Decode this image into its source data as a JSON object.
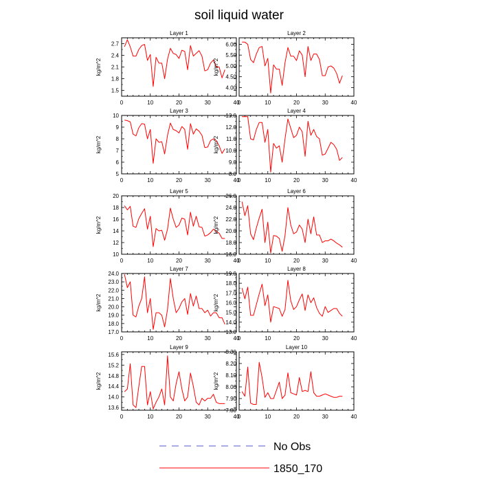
{
  "figure": {
    "title": "soil liquid water",
    "legend": [
      {
        "label": "No Obs",
        "color": "#5555cc",
        "style": "dashed"
      },
      {
        "label": "1850_170",
        "color": "#ff0000",
        "style": "solid"
      }
    ]
  },
  "chart_data": [
    {
      "type": "line",
      "title": "Layer 1",
      "ylabel": "kg/m^2",
      "xlim": [
        0,
        40
      ],
      "ylim": [
        1.35,
        2.85
      ],
      "xticks": [
        0,
        10,
        20,
        30,
        40
      ],
      "yticks": [
        1.5,
        1.8,
        2.1,
        2.4,
        2.7
      ],
      "ytick_labels": [
        "1.5",
        "1.8",
        "2.1",
        "2.4",
        "2.7"
      ],
      "series": [
        {
          "name": "1850_170",
          "color": "#ff0000",
          "x": [
            1,
            2,
            3,
            4,
            5,
            6,
            7,
            8,
            9,
            10,
            11,
            12,
            13,
            14,
            15,
            16,
            17,
            18,
            19,
            20,
            21,
            22,
            23,
            24,
            25,
            26,
            27,
            28,
            29,
            30,
            31,
            32,
            33,
            34,
            35,
            36
          ],
          "y": [
            2.62,
            2.8,
            2.62,
            2.38,
            2.38,
            2.55,
            2.65,
            2.68,
            2.27,
            2.42,
            1.6,
            2.35,
            2.2,
            2.2,
            1.8,
            2.3,
            2.58,
            2.45,
            2.42,
            2.32,
            2.53,
            2.5,
            2.03,
            2.65,
            2.38,
            2.45,
            2.52,
            2.38,
            2.0,
            2.03,
            2.2,
            2.28,
            2.1,
            2.1,
            1.82,
            2.03
          ]
        }
      ]
    },
    {
      "type": "line",
      "title": "Layer 2",
      "ylabel": "kg/m^2",
      "xlim": [
        0,
        40
      ],
      "ylim": [
        3.6,
        6.3
      ],
      "xticks": [
        0,
        10,
        20,
        30,
        40
      ],
      "yticks": [
        4.0,
        4.5,
        5.0,
        5.5,
        6.0
      ],
      "ytick_labels": [
        "4.00",
        "4.50",
        "5.00",
        "5.50",
        "6.00"
      ],
      "series": [
        {
          "name": "1850_170",
          "color": "#ff0000",
          "x": [
            1,
            2,
            3,
            4,
            5,
            6,
            7,
            8,
            9,
            10,
            11,
            12,
            13,
            14,
            15,
            16,
            17,
            18,
            19,
            20,
            21,
            22,
            23,
            24,
            25,
            26,
            27,
            28,
            29,
            30,
            31,
            32,
            33,
            34,
            35,
            36
          ],
          "y": [
            6.1,
            6.1,
            6.0,
            5.3,
            5.15,
            5.55,
            5.85,
            5.9,
            5.0,
            5.35,
            3.75,
            5.05,
            4.85,
            4.85,
            4.1,
            5.15,
            5.85,
            5.45,
            5.45,
            5.25,
            5.7,
            5.5,
            4.5,
            5.9,
            5.25,
            5.55,
            5.55,
            5.3,
            4.55,
            4.55,
            4.95,
            5.0,
            4.9,
            4.65,
            4.2,
            4.55
          ]
        }
      ]
    },
    {
      "type": "line",
      "title": "Layer 3",
      "ylabel": "kg/m^2",
      "xlim": [
        0,
        40
      ],
      "ylim": [
        5,
        10
      ],
      "xticks": [
        0,
        10,
        20,
        30,
        40
      ],
      "yticks": [
        5,
        6,
        7,
        8,
        9,
        10
      ],
      "ytick_labels": [
        "5",
        "6",
        "7",
        "8",
        "9",
        "10"
      ],
      "series": [
        {
          "name": "1850_170",
          "color": "#ff0000",
          "x": [
            1,
            2,
            3,
            4,
            5,
            6,
            7,
            8,
            9,
            10,
            11,
            12,
            13,
            14,
            15,
            16,
            17,
            18,
            19,
            20,
            21,
            22,
            23,
            24,
            25,
            26,
            27,
            28,
            29,
            30,
            31,
            32,
            33,
            34,
            35,
            36
          ],
          "y": [
            9.6,
            9.55,
            9.45,
            8.4,
            8.25,
            8.95,
            9.3,
            9.25,
            8.0,
            8.8,
            5.9,
            8.0,
            7.7,
            7.75,
            6.7,
            8.3,
            9.35,
            8.8,
            8.7,
            8.5,
            9.05,
            8.8,
            7.1,
            9.3,
            8.4,
            8.85,
            8.65,
            8.3,
            7.25,
            7.3,
            7.85,
            8.0,
            7.85,
            7.4,
            6.75,
            7.15
          ]
        }
      ]
    },
    {
      "type": "line",
      "title": "Layer 4",
      "ylabel": "kg/m^2",
      "xlim": [
        0,
        40
      ],
      "ylim": [
        8,
        13
      ],
      "xticks": [
        0,
        10,
        20,
        30,
        40
      ],
      "yticks": [
        8,
        9,
        10,
        11,
        12,
        13
      ],
      "ytick_labels": [
        "8.0",
        "9.0",
        "10.0",
        "11.0",
        "12.0",
        "13.0"
      ],
      "series": [
        {
          "name": "1850_170",
          "color": "#ff0000",
          "x": [
            1,
            2,
            3,
            4,
            5,
            6,
            7,
            8,
            9,
            10,
            11,
            12,
            13,
            14,
            15,
            16,
            17,
            18,
            19,
            20,
            21,
            22,
            23,
            24,
            25,
            26,
            27,
            28,
            29,
            30,
            31,
            32,
            33,
            34,
            35,
            36
          ],
          "y": [
            12.9,
            12.9,
            12.9,
            11.0,
            10.9,
            11.8,
            12.4,
            12.4,
            10.7,
            11.8,
            8.15,
            10.6,
            10.2,
            10.4,
            9.0,
            11.0,
            12.7,
            11.9,
            11.1,
            11.3,
            12.0,
            11.6,
            9.5,
            12.5,
            11.3,
            11.8,
            11.2,
            11.0,
            9.6,
            9.7,
            10.2,
            10.7,
            10.5,
            10.1,
            9.15,
            9.4
          ]
        }
      ]
    },
    {
      "type": "line",
      "title": "Layer 5",
      "ylabel": "kg/m^2",
      "xlim": [
        0,
        40
      ],
      "ylim": [
        10,
        20
      ],
      "xticks": [
        0,
        10,
        20,
        30,
        40
      ],
      "yticks": [
        10,
        12,
        14,
        16,
        18,
        20
      ],
      "ytick_labels": [
        "10",
        "12",
        "14",
        "16",
        "18",
        "20"
      ],
      "series": [
        {
          "name": "1850_170",
          "color": "#ff0000",
          "x": [
            1,
            2,
            3,
            4,
            5,
            6,
            7,
            8,
            9,
            10,
            11,
            12,
            13,
            14,
            15,
            16,
            17,
            18,
            19,
            20,
            21,
            22,
            23,
            24,
            25,
            26,
            27,
            28,
            29,
            30,
            31,
            32,
            33,
            34,
            35,
            36
          ],
          "y": [
            18.3,
            17.6,
            18.2,
            14.8,
            14.6,
            16.1,
            17.0,
            17.8,
            14.3,
            16.5,
            11.3,
            14.4,
            14.0,
            14.1,
            12.4,
            14.3,
            17.9,
            16.0,
            14.6,
            15.0,
            16.2,
            16.0,
            13.3,
            17.2,
            14.8,
            16.5,
            14.7,
            14.6,
            13.1,
            13.3,
            13.7,
            14.3,
            13.9,
            13.6,
            12.7,
            12.7
          ]
        }
      ]
    },
    {
      "type": "line",
      "title": "Layer 6",
      "ylabel": "kg/m^2",
      "xlim": [
        0,
        40
      ],
      "ylim": [
        16,
        26
      ],
      "xticks": [
        0,
        10,
        20,
        30,
        40
      ],
      "yticks": [
        16,
        18,
        20,
        22,
        24,
        26
      ],
      "ytick_labels": [
        "16.0",
        "18.0",
        "20.0",
        "22.0",
        "24.0",
        "26.0"
      ],
      "series": [
        {
          "name": "1850_170",
          "color": "#ff0000",
          "x": [
            1,
            2,
            3,
            4,
            5,
            6,
            7,
            8,
            9,
            10,
            11,
            12,
            13,
            14,
            15,
            16,
            17,
            18,
            19,
            20,
            21,
            22,
            23,
            24,
            25,
            26,
            27,
            28,
            29,
            30,
            31,
            32,
            33,
            34,
            35,
            36
          ],
          "y": [
            25.0,
            22.6,
            24.3,
            19.5,
            18.5,
            20.5,
            22.2,
            23.7,
            18.0,
            21.5,
            16.2,
            19.2,
            19.1,
            18.7,
            16.5,
            19.2,
            24.0,
            21.0,
            19.5,
            19.8,
            21.0,
            20.3,
            18.0,
            22.0,
            19.5,
            22.4,
            19.3,
            19.3,
            18.0,
            18.3,
            18.3,
            18.6,
            18.3,
            17.9,
            17.6,
            17.2
          ]
        }
      ]
    },
    {
      "type": "line",
      "title": "Layer 7",
      "ylabel": "kg/m^2",
      "xlim": [
        0,
        40
      ],
      "ylim": [
        17,
        24
      ],
      "xticks": [
        0,
        10,
        20,
        30,
        40
      ],
      "yticks": [
        17,
        18,
        19,
        20,
        21,
        22,
        23,
        24
      ],
      "ytick_labels": [
        "17.0",
        "18.0",
        "19.0",
        "20.0",
        "21.0",
        "22.0",
        "23.0",
        "24.0"
      ],
      "series": [
        {
          "name": "1850_170",
          "color": "#ff0000",
          "x": [
            1,
            2,
            3,
            4,
            5,
            6,
            7,
            8,
            9,
            10,
            11,
            12,
            13,
            14,
            15,
            16,
            17,
            18,
            19,
            20,
            21,
            22,
            23,
            24,
            25,
            26,
            27,
            28,
            29,
            30,
            31,
            32,
            33,
            34,
            35,
            36
          ],
          "y": [
            23.9,
            22.3,
            23.0,
            19.0,
            18.8,
            20.1,
            21.0,
            23.6,
            19.3,
            21.0,
            17.3,
            19.3,
            19.3,
            19.0,
            17.6,
            19.7,
            23.4,
            21.0,
            19.3,
            19.8,
            20.6,
            21.0,
            19.1,
            21.6,
            20.1,
            21.3,
            19.8,
            19.8,
            19.3,
            19.6,
            18.9,
            19.3,
            19.3,
            18.7,
            18.7,
            17.9
          ]
        }
      ]
    },
    {
      "type": "line",
      "title": "Layer 8",
      "ylabel": "kg/m^2",
      "xlim": [
        0,
        40
      ],
      "ylim": [
        13,
        19
      ],
      "xticks": [
        0,
        10,
        20,
        30,
        40
      ],
      "yticks": [
        13,
        14,
        15,
        16,
        17,
        18,
        19
      ],
      "ytick_labels": [
        "13.0",
        "14.0",
        "15.0",
        "16.0",
        "17.0",
        "18.0",
        "19.0"
      ],
      "series": [
        {
          "name": "1850_170",
          "color": "#ff0000",
          "x": [
            1,
            2,
            3,
            4,
            5,
            6,
            7,
            8,
            9,
            10,
            11,
            12,
            13,
            14,
            15,
            16,
            17,
            18,
            19,
            20,
            21,
            22,
            23,
            24,
            25,
            26,
            27,
            28,
            29,
            30,
            31,
            32,
            33,
            34,
            35,
            36
          ],
          "y": [
            17.5,
            16.4,
            17.6,
            14.7,
            14.7,
            15.8,
            16.9,
            17.9,
            15.7,
            16.8,
            14.0,
            15.6,
            15.5,
            15.4,
            14.6,
            15.3,
            18.3,
            16.2,
            15.3,
            15.6,
            16.3,
            16.9,
            15.2,
            16.8,
            16.0,
            16.5,
            15.5,
            14.9,
            14.6,
            15.6,
            15.0,
            15.2,
            15.4,
            15.4,
            14.9,
            14.6
          ]
        }
      ]
    },
    {
      "type": "line",
      "title": "Layer 9",
      "ylabel": "kg/m^2",
      "xlim": [
        0,
        40
      ],
      "ylim": [
        13.5,
        15.7
      ],
      "xticks": [
        0,
        10,
        20,
        30,
        40
      ],
      "yticks": [
        13.6,
        14.0,
        14.4,
        14.8,
        15.2,
        15.6
      ],
      "ytick_labels": [
        "13.6",
        "14.0",
        "14.4",
        "14.8",
        "15.2",
        "15.6"
      ],
      "series": [
        {
          "name": "1850_170",
          "color": "#ff0000",
          "x": [
            1,
            2,
            3,
            4,
            5,
            6,
            7,
            8,
            9,
            10,
            11,
            12,
            13,
            14,
            15,
            16,
            17,
            18,
            19,
            20,
            21,
            22,
            23,
            24,
            25,
            26,
            27,
            28,
            29,
            30,
            31,
            32,
            33,
            34,
            35,
            36
          ],
          "y": [
            14.2,
            14.3,
            15.25,
            13.7,
            13.6,
            14.4,
            15.15,
            15.15,
            13.7,
            14.2,
            13.55,
            13.8,
            14.0,
            14.3,
            13.7,
            15.55,
            14.0,
            13.85,
            14.5,
            14.95,
            14.3,
            13.85,
            14.0,
            14.9,
            14.4,
            13.8,
            13.7,
            13.95,
            13.85,
            13.95,
            13.95,
            14.1,
            13.8,
            13.75,
            13.75,
            13.75
          ]
        }
      ]
    },
    {
      "type": "line",
      "title": "Layer 10",
      "ylabel": "kg/m^2",
      "xlim": [
        0,
        40
      ],
      "ylim": [
        7.8,
        8.3
      ],
      "xticks": [
        0,
        10,
        20,
        30,
        40
      ],
      "yticks": [
        7.8,
        7.9,
        8.0,
        8.1,
        8.2,
        8.3
      ],
      "ytick_labels": [
        "7.80",
        "7.90",
        "8.00",
        "8.10",
        "8.20",
        "8.30"
      ],
      "series": [
        {
          "name": "1850_170",
          "color": "#ff0000",
          "x": [
            1,
            2,
            3,
            4,
            5,
            6,
            7,
            8,
            9,
            10,
            11,
            12,
            13,
            14,
            15,
            16,
            17,
            18,
            19,
            20,
            21,
            22,
            23,
            24,
            25,
            26,
            27,
            28,
            29,
            30,
            31,
            32,
            33,
            34,
            35,
            36
          ],
          "y": [
            7.96,
            7.92,
            8.17,
            7.86,
            7.85,
            7.85,
            8.21,
            8.08,
            7.91,
            7.95,
            7.9,
            7.9,
            7.97,
            8.04,
            7.9,
            7.93,
            8.12,
            7.95,
            7.94,
            7.93,
            8.08,
            7.96,
            7.97,
            7.96,
            8.13,
            7.95,
            7.92,
            7.92,
            7.93,
            7.94,
            7.93,
            7.92,
            7.91,
            7.91,
            7.92,
            7.92
          ]
        }
      ]
    }
  ]
}
